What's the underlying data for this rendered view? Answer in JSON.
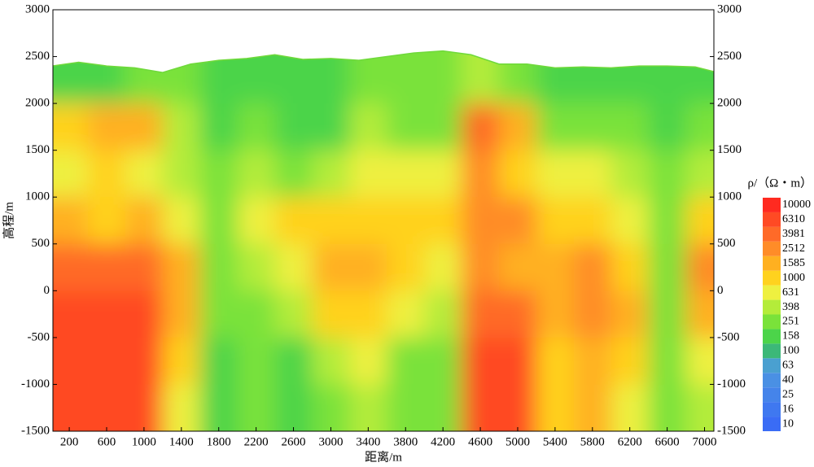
{
  "chart_data": {
    "type": "contour",
    "x_label": "距离/m",
    "y_label": "高程/m",
    "colorbar_title": "ρ/（Ω・m）",
    "xlim": [
      25,
      7100
    ],
    "xticks": [
      200,
      600,
      1000,
      1400,
      1800,
      2200,
      2600,
      3000,
      3400,
      3800,
      4200,
      4600,
      5000,
      5400,
      5800,
      6200,
      6600,
      7000
    ],
    "ylim": [
      -1500,
      3000
    ],
    "yticks": [
      -1500,
      -1000,
      -500,
      0,
      500,
      1000,
      1500,
      2000,
      2500,
      3000
    ],
    "y2lim": [
      -1500,
      3000
    ],
    "y2ticks": [
      -1500,
      -1000,
      -500,
      0,
      500,
      1000,
      1500,
      2000,
      2500,
      3000
    ],
    "levels": [
      10,
      16,
      25,
      40,
      63,
      100,
      158,
      251,
      398,
      631,
      1000,
      1585,
      2512,
      3981,
      6310,
      10000
    ],
    "level_colors": [
      "#3a6cf5",
      "#3f78f0",
      "#4584ea",
      "#4a90e4",
      "#4aa0d0",
      "#3cb878",
      "#4cd44a",
      "#7ae23a",
      "#b4ec3a",
      "#eef040",
      "#ffd21e",
      "#ffb020",
      "#ff8c28",
      "#ff6a28",
      "#ff4a24",
      "#ff2a20"
    ],
    "grid_x": [
      200,
      600,
      1000,
      1400,
      1800,
      2200,
      2600,
      3000,
      3400,
      3800,
      4200,
      4600,
      5000,
      5400,
      5800,
      6200,
      6600,
      7000
    ],
    "grid_y": [
      2250,
      1750,
      1250,
      750,
      250,
      -250,
      -750,
      -1250
    ],
    "grid_values": [
      [
        250,
        250,
        251,
        251,
        200,
        200,
        250,
        250,
        300,
        300,
        251,
        400,
        300,
        250,
        200,
        200,
        200,
        200
      ],
      [
        1000,
        1585,
        1585,
        398,
        200,
        300,
        200,
        200,
        400,
        251,
        300,
        3981,
        1585,
        300,
        251,
        251,
        158,
        300
      ],
      [
        631,
        1000,
        631,
        398,
        300,
        400,
        300,
        400,
        631,
        631,
        631,
        2512,
        1000,
        631,
        631,
        398,
        251,
        398
      ],
      [
        1585,
        1000,
        1585,
        631,
        251,
        631,
        1000,
        1000,
        1000,
        1000,
        1000,
        2512,
        2512,
        1000,
        1000,
        631,
        251,
        1000
      ],
      [
        3981,
        3981,
        3981,
        1585,
        251,
        398,
        631,
        1585,
        1585,
        1000,
        631,
        2512,
        1585,
        1585,
        2512,
        1000,
        251,
        2512
      ],
      [
        6310,
        6310,
        6310,
        1585,
        251,
        251,
        398,
        1000,
        1000,
        631,
        398,
        3981,
        3981,
        1585,
        2512,
        1585,
        251,
        1585
      ],
      [
        6310,
        6310,
        6310,
        1000,
        158,
        251,
        158,
        398,
        631,
        251,
        251,
        6310,
        6310,
        1000,
        1585,
        1000,
        251,
        631
      ],
      [
        6310,
        6310,
        6310,
        631,
        200,
        251,
        158,
        251,
        398,
        251,
        251,
        6310,
        6310,
        1000,
        1585,
        631,
        251,
        398
      ]
    ],
    "surface_x": [
      25,
      300,
      600,
      900,
      1200,
      1500,
      1800,
      2100,
      2400,
      2700,
      3000,
      3300,
      3600,
      3900,
      4200,
      4500,
      4800,
      5100,
      5400,
      5700,
      6000,
      6300,
      6600,
      6900,
      7100
    ],
    "surface_elevation": [
      2400,
      2440,
      2400,
      2380,
      2330,
      2420,
      2460,
      2480,
      2520,
      2470,
      2480,
      2460,
      2500,
      2540,
      2560,
      2520,
      2420,
      2420,
      2380,
      2390,
      2380,
      2400,
      2400,
      2390,
      2340
    ]
  }
}
